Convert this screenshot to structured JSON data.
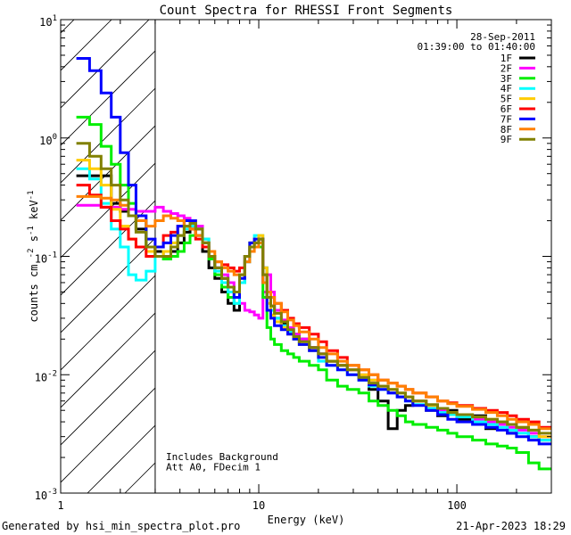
{
  "chart_data": {
    "type": "line",
    "title": "Count Spectra for RHESSI Front Segments",
    "xlabel": "Energy (keV)",
    "ylabel": "counts cm",
    "ylabel_suffix": "s",
    "ylabel_units": "keV",
    "ylabel_exp": "-2",
    "ylabel_exp2": "-1",
    "x_scale": "log",
    "y_scale": "log",
    "xlim": [
      1,
      300
    ],
    "ylim": [
      0.001,
      10
    ],
    "x_ticks": [
      {
        "value": 1,
        "label": "1"
      },
      {
        "value": 10,
        "label": "10"
      },
      {
        "value": 100,
        "label": "100"
      }
    ],
    "y_ticks": [
      {
        "value": 10,
        "base": "10",
        "exp": "1"
      },
      {
        "value": 1,
        "base": "10",
        "exp": "0"
      },
      {
        "value": 0.1,
        "base": "10",
        "exp": "-1"
      },
      {
        "value": 0.01,
        "base": "10",
        "exp": "-2"
      },
      {
        "value": 0.001,
        "base": "10",
        "exp": "-3"
      }
    ],
    "attenuation_threshold_keV": 3,
    "date": "28-Sep-2011",
    "time_range": "01:39:00 to 01:40:00",
    "annotation_lines": [
      "Includes Background",
      "Att A0, FDecim 1"
    ],
    "legend": [
      {
        "label": "1F",
        "color": "#000000"
      },
      {
        "label": "2F",
        "color": "#ff00ff"
      },
      {
        "label": "3F",
        "color": "#00ee00"
      },
      {
        "label": "4F",
        "color": "#00ffff"
      },
      {
        "label": "5F",
        "color": "#ffcc00"
      },
      {
        "label": "6F",
        "color": "#ff0000"
      },
      {
        "label": "7F",
        "color": "#0000ff"
      },
      {
        "label": "8F",
        "color": "#ff8000"
      },
      {
        "label": "9F",
        "color": "#808000"
      }
    ],
    "energy_bins_low_keV": [
      1.2,
      1.4,
      1.6,
      1.8,
      2.0,
      2.2,
      2.4,
      2.7,
      3.0,
      3.3,
      3.6,
      3.9,
      4.2,
      4.5,
      4.8,
      5.2,
      5.6,
      6.0,
      6.5,
      7.0,
      7.5,
      8.0,
      8.5,
      9.0,
      9.5,
      10.0,
      10.5,
      11.0,
      11.5,
      12.0,
      13.0,
      14.0,
      15.0,
      16.0,
      18.0,
      20.0,
      22.0,
      25.0,
      28.0,
      32.0,
      36.0,
      40.0,
      45.0,
      50.0,
      55.0,
      60.0,
      70.0,
      80.0,
      90.0,
      100.0,
      120.0,
      140.0,
      160.0,
      180.0,
      200.0,
      230.0,
      260.0,
      300.0
    ],
    "series": [
      {
        "name": "1F",
        "values": [
          0.48,
          0.48,
          0.48,
          0.28,
          0.24,
          0.22,
          0.17,
          0.12,
          0.11,
          0.1,
          0.11,
          0.13,
          0.16,
          0.17,
          0.15,
          0.11,
          0.08,
          0.065,
          0.05,
          0.04,
          0.035,
          0.06,
          0.09,
          0.12,
          0.13,
          0.14,
          0.08,
          0.045,
          0.038,
          0.03,
          0.027,
          0.024,
          0.022,
          0.02,
          0.017,
          0.015,
          0.013,
          0.012,
          0.011,
          0.009,
          0.0075,
          0.006,
          0.0035,
          0.005,
          0.0055,
          0.006,
          0.005,
          0.0045,
          0.005,
          0.0042,
          0.0045,
          0.0035,
          0.004,
          0.0032,
          0.0035,
          0.003,
          0.0028
        ]
      },
      {
        "name": "2F",
        "values": [
          0.27,
          0.27,
          0.26,
          0.26,
          0.25,
          0.25,
          0.24,
          0.24,
          0.26,
          0.24,
          0.23,
          0.22,
          0.21,
          0.2,
          0.18,
          0.13,
          0.095,
          0.08,
          0.07,
          0.06,
          0.05,
          0.04,
          0.035,
          0.034,
          0.032,
          0.03,
          0.05,
          0.07,
          0.05,
          0.035,
          0.029,
          0.025,
          0.022,
          0.02,
          0.017,
          0.015,
          0.013,
          0.012,
          0.011,
          0.01,
          0.009,
          0.008,
          0.007,
          0.0065,
          0.0065,
          0.006,
          0.0055,
          0.005,
          0.0048,
          0.0045,
          0.0042,
          0.004,
          0.0038,
          0.0036,
          0.0034,
          0.0032,
          0.003
        ]
      },
      {
        "name": "3F",
        "values": [
          1.5,
          1.3,
          0.85,
          0.6,
          0.4,
          0.28,
          0.2,
          0.12,
          0.1,
          0.095,
          0.1,
          0.11,
          0.13,
          0.15,
          0.17,
          0.14,
          0.095,
          0.07,
          0.055,
          0.045,
          0.04,
          0.06,
          0.1,
          0.13,
          0.14,
          0.12,
          0.045,
          0.025,
          0.02,
          0.018,
          0.016,
          0.015,
          0.014,
          0.013,
          0.012,
          0.011,
          0.009,
          0.008,
          0.0075,
          0.007,
          0.006,
          0.0055,
          0.005,
          0.0045,
          0.004,
          0.0038,
          0.0036,
          0.0034,
          0.0032,
          0.003,
          0.0028,
          0.0026,
          0.0025,
          0.0024,
          0.0022,
          0.0018,
          0.0016
        ]
      },
      {
        "name": "4F",
        "values": [
          0.55,
          0.45,
          0.28,
          0.17,
          0.12,
          0.07,
          0.063,
          0.075,
          0.1,
          0.11,
          0.13,
          0.15,
          0.17,
          0.18,
          0.17,
          0.14,
          0.1,
          0.075,
          0.06,
          0.05,
          0.04,
          0.06,
          0.09,
          0.12,
          0.15,
          0.15,
          0.08,
          0.045,
          0.035,
          0.03,
          0.026,
          0.023,
          0.02,
          0.018,
          0.016,
          0.013,
          0.012,
          0.011,
          0.01,
          0.009,
          0.008,
          0.0075,
          0.007,
          0.0065,
          0.006,
          0.0056,
          0.0052,
          0.0048,
          0.0046,
          0.0044,
          0.004,
          0.0038,
          0.0036,
          0.0034,
          0.0032,
          0.003,
          0.0028
        ]
      },
      {
        "name": "5F",
        "values": [
          0.65,
          0.55,
          0.4,
          0.25,
          0.18,
          0.14,
          0.12,
          0.11,
          0.1,
          0.11,
          0.13,
          0.15,
          0.18,
          0.2,
          0.17,
          0.13,
          0.1,
          0.08,
          0.065,
          0.055,
          0.05,
          0.07,
          0.1,
          0.13,
          0.14,
          0.15,
          0.08,
          0.04,
          0.032,
          0.028,
          0.025,
          0.022,
          0.02,
          0.018,
          0.016,
          0.014,
          0.013,
          0.012,
          0.011,
          0.01,
          0.009,
          0.008,
          0.0075,
          0.007,
          0.0065,
          0.006,
          0.0055,
          0.0052,
          0.0048,
          0.0046,
          0.0044,
          0.0042,
          0.004,
          0.0038,
          0.0036,
          0.0034,
          0.003
        ]
      },
      {
        "name": "6F",
        "values": [
          0.4,
          0.33,
          0.26,
          0.2,
          0.17,
          0.14,
          0.12,
          0.1,
          0.12,
          0.15,
          0.16,
          0.18,
          0.2,
          0.17,
          0.14,
          0.12,
          0.1,
          0.09,
          0.085,
          0.08,
          0.075,
          0.08,
          0.1,
          0.12,
          0.13,
          0.14,
          0.07,
          0.05,
          0.045,
          0.04,
          0.035,
          0.03,
          0.027,
          0.025,
          0.022,
          0.019,
          0.016,
          0.014,
          0.012,
          0.011,
          0.01,
          0.009,
          0.0085,
          0.008,
          0.0075,
          0.007,
          0.0065,
          0.006,
          0.0058,
          0.0055,
          0.0052,
          0.005,
          0.0048,
          0.0045,
          0.0042,
          0.004,
          0.0036
        ]
      },
      {
        "name": "7F",
        "values": [
          4.7,
          3.7,
          2.4,
          1.5,
          0.75,
          0.4,
          0.22,
          0.14,
          0.12,
          0.13,
          0.15,
          0.18,
          0.2,
          0.2,
          0.17,
          0.13,
          0.1,
          0.08,
          0.065,
          0.055,
          0.045,
          0.065,
          0.1,
          0.13,
          0.14,
          0.14,
          0.06,
          0.035,
          0.03,
          0.026,
          0.024,
          0.022,
          0.02,
          0.018,
          0.016,
          0.014,
          0.012,
          0.011,
          0.01,
          0.009,
          0.0082,
          0.0075,
          0.007,
          0.0065,
          0.006,
          0.0055,
          0.005,
          0.0046,
          0.0042,
          0.004,
          0.0038,
          0.0036,
          0.0034,
          0.0032,
          0.003,
          0.0028,
          0.0026
        ]
      },
      {
        "name": "8F",
        "values": [
          0.32,
          0.32,
          0.31,
          0.3,
          0.27,
          0.22,
          0.2,
          0.18,
          0.2,
          0.22,
          0.21,
          0.2,
          0.18,
          0.17,
          0.15,
          0.13,
          0.11,
          0.09,
          0.08,
          0.075,
          0.07,
          0.07,
          0.09,
          0.11,
          0.12,
          0.13,
          0.06,
          0.05,
          0.045,
          0.04,
          0.034,
          0.029,
          0.026,
          0.023,
          0.02,
          0.017,
          0.015,
          0.013,
          0.012,
          0.011,
          0.01,
          0.009,
          0.0085,
          0.008,
          0.0075,
          0.007,
          0.0065,
          0.006,
          0.0057,
          0.0054,
          0.0051,
          0.0048,
          0.0045,
          0.0042,
          0.004,
          0.0038,
          0.0035
        ]
      },
      {
        "name": "9F",
        "values": [
          0.9,
          0.7,
          0.55,
          0.4,
          0.3,
          0.22,
          0.16,
          0.12,
          0.1,
          0.1,
          0.12,
          0.15,
          0.18,
          0.19,
          0.17,
          0.13,
          0.1,
          0.08,
          0.065,
          0.055,
          0.05,
          0.07,
          0.1,
          0.12,
          0.13,
          0.14,
          0.07,
          0.045,
          0.038,
          0.033,
          0.028,
          0.024,
          0.021,
          0.019,
          0.017,
          0.015,
          0.013,
          0.012,
          0.011,
          0.0095,
          0.0085,
          0.008,
          0.0075,
          0.007,
          0.0065,
          0.006,
          0.0056,
          0.0052,
          0.0048,
          0.0046,
          0.0044,
          0.0042,
          0.004,
          0.0038,
          0.0036,
          0.0034,
          0.0032
        ]
      }
    ]
  },
  "footer": {
    "generated_by": "Generated by hsi_min_spectra_plot.pro",
    "timestamp": "21-Apr-2023 18:29"
  }
}
